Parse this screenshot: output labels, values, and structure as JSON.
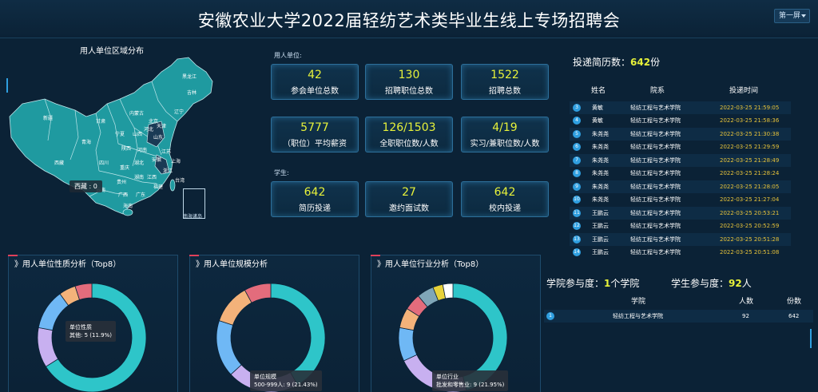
{
  "header": {
    "title": "安徽农业大学2022届轻纺艺术类毕业生线上专场招聘会",
    "screen_select": "第一屏"
  },
  "map": {
    "title": "用人单位区域分布",
    "tooltip": "西藏 : 0",
    "inset_label": "南海诸岛",
    "province_labels": [
      "新疆",
      "西藏",
      "青海",
      "甘肃",
      "内蒙古",
      "黑龙江",
      "吉林",
      "辽宁",
      "宁夏",
      "陕西",
      "山西",
      "河北",
      "北京",
      "天津",
      "山东",
      "河南",
      "四川",
      "重庆",
      "湖北",
      "安徽",
      "江苏",
      "上海",
      "浙江",
      "湖南",
      "江西",
      "贵州",
      "云南",
      "广西",
      "广东",
      "福建",
      "海南",
      "台湾"
    ]
  },
  "stats": {
    "employer_label": "用人单位:",
    "student_label": "学生:",
    "employer": [
      {
        "value": "42",
        "label": "参会单位总数"
      },
      {
        "value": "130",
        "label": "招聘职位总数"
      },
      {
        "value": "1522",
        "label": "招聘总数"
      },
      {
        "value": "5777",
        "label": "（职位）平均薪资"
      },
      {
        "value": "126/1503",
        "label": "全职职位数/人数"
      },
      {
        "value": "4/19",
        "label": "实习/兼职位数/人数"
      }
    ],
    "student": [
      {
        "value": "642",
        "label": "简历投递"
      },
      {
        "value": "27",
        "label": "邀约面试数"
      },
      {
        "value": "642",
        "label": "校内投递"
      }
    ]
  },
  "resumes": {
    "title": "投递简历数：",
    "count": "642",
    "unit": "份",
    "headers": [
      "姓名",
      "院系",
      "投递时间"
    ],
    "rows": [
      {
        "idx": "3",
        "name": "黄敏",
        "dept": "轻纺工程与艺术学院",
        "time": "2022-03-25 21:59:05"
      },
      {
        "idx": "4",
        "name": "黄敏",
        "dept": "轻纺工程与艺术学院",
        "time": "2022-03-25 21:58:36"
      },
      {
        "idx": "5",
        "name": "朱尧尧",
        "dept": "轻纺工程与艺术学院",
        "time": "2022-03-25 21:30:38"
      },
      {
        "idx": "6",
        "name": "朱尧尧",
        "dept": "轻纺工程与艺术学院",
        "time": "2022-03-25 21:29:59"
      },
      {
        "idx": "7",
        "name": "朱尧尧",
        "dept": "轻纺工程与艺术学院",
        "time": "2022-03-25 21:28:49"
      },
      {
        "idx": "8",
        "name": "朱尧尧",
        "dept": "轻纺工程与艺术学院",
        "time": "2022-03-25 21:28:24"
      },
      {
        "idx": "9",
        "name": "朱尧尧",
        "dept": "轻纺工程与艺术学院",
        "time": "2022-03-25 21:28:05"
      },
      {
        "idx": "10",
        "name": "朱尧尧",
        "dept": "轻纺工程与艺术学院",
        "time": "2022-03-25 21:27:04"
      },
      {
        "idx": "11",
        "name": "王鹏云",
        "dept": "轻纺工程与艺术学院",
        "time": "2022-03-25 20:53:21"
      },
      {
        "idx": "12",
        "name": "王鹏云",
        "dept": "轻纺工程与艺术学院",
        "time": "2022-03-25 20:52:59"
      },
      {
        "idx": "13",
        "name": "王鹏云",
        "dept": "轻纺工程与艺术学院",
        "time": "2022-03-25 20:51:28"
      },
      {
        "idx": "14",
        "name": "王鹏云",
        "dept": "轻纺工程与艺术学院",
        "time": "2022-03-25 20:51:08"
      }
    ]
  },
  "participation": {
    "college_label": "学院参与度：",
    "college_count": "1",
    "college_unit": "个学院",
    "student_label": "学生参与度：",
    "student_count": "92",
    "student_unit": "人",
    "headers": [
      "学院",
      "人数",
      "份数"
    ],
    "rows": [
      {
        "idx": "1",
        "college": "轻纺工程与艺术学院",
        "people": "92",
        "copies": "642"
      }
    ]
  },
  "colors": {
    "accent": "#e7f23a",
    "time": "#e7c33a",
    "card_border": "#2d6f9a",
    "map_fill": "#1f9aa0"
  },
  "chart_data": [
    {
      "type": "pie",
      "title": "用人单位性质分析（Top8）",
      "tooltip_title": "单位性质",
      "tooltip_line": "其他: 5 (11.9%)",
      "slices": [
        {
          "name": "",
          "value": 0.66,
          "color": "#2ec5c9"
        },
        {
          "name": "其他",
          "value": 0.119,
          "color": "#c8b0f0"
        },
        {
          "name": "",
          "value": 0.12,
          "color": "#6fb8f5"
        },
        {
          "name": "",
          "value": 0.05,
          "color": "#f3b27a"
        },
        {
          "name": "",
          "value": 0.05,
          "color": "#e36c7c"
        }
      ]
    },
    {
      "type": "pie",
      "title": "用人单位规模分析",
      "tooltip_title": "单位规模",
      "tooltip_line": "500-999人: 9 (21.43%)",
      "slices": [
        {
          "name": "",
          "value": 0.42,
          "color": "#2ec5c9"
        },
        {
          "name": "500-999人",
          "value": 0.2143,
          "color": "#c8b0f0"
        },
        {
          "name": "",
          "value": 0.17,
          "color": "#6fb8f5"
        },
        {
          "name": "",
          "value": 0.12,
          "color": "#f3b27a"
        },
        {
          "name": "",
          "value": 0.08,
          "color": "#e36c7c"
        }
      ]
    },
    {
      "type": "pie",
      "title": "用人单位行业分析（Top8）",
      "tooltip_title": "单位行业",
      "tooltip_line": "批发和零售业: 9 (21.95%)",
      "slices": [
        {
          "name": "",
          "value": 0.46,
          "color": "#2ec5c9"
        },
        {
          "name": "批发和零售业",
          "value": 0.2195,
          "color": "#c8b0f0"
        },
        {
          "name": "",
          "value": 0.1,
          "color": "#6fb8f5"
        },
        {
          "name": "",
          "value": 0.06,
          "color": "#f3b27a"
        },
        {
          "name": "",
          "value": 0.05,
          "color": "#e36c7c"
        },
        {
          "name": "",
          "value": 0.05,
          "color": "#7fa6b8"
        },
        {
          "name": "",
          "value": 0.03,
          "color": "#e7d23a"
        },
        {
          "name": "",
          "value": 0.03,
          "color": "#ffffff"
        }
      ]
    }
  ]
}
